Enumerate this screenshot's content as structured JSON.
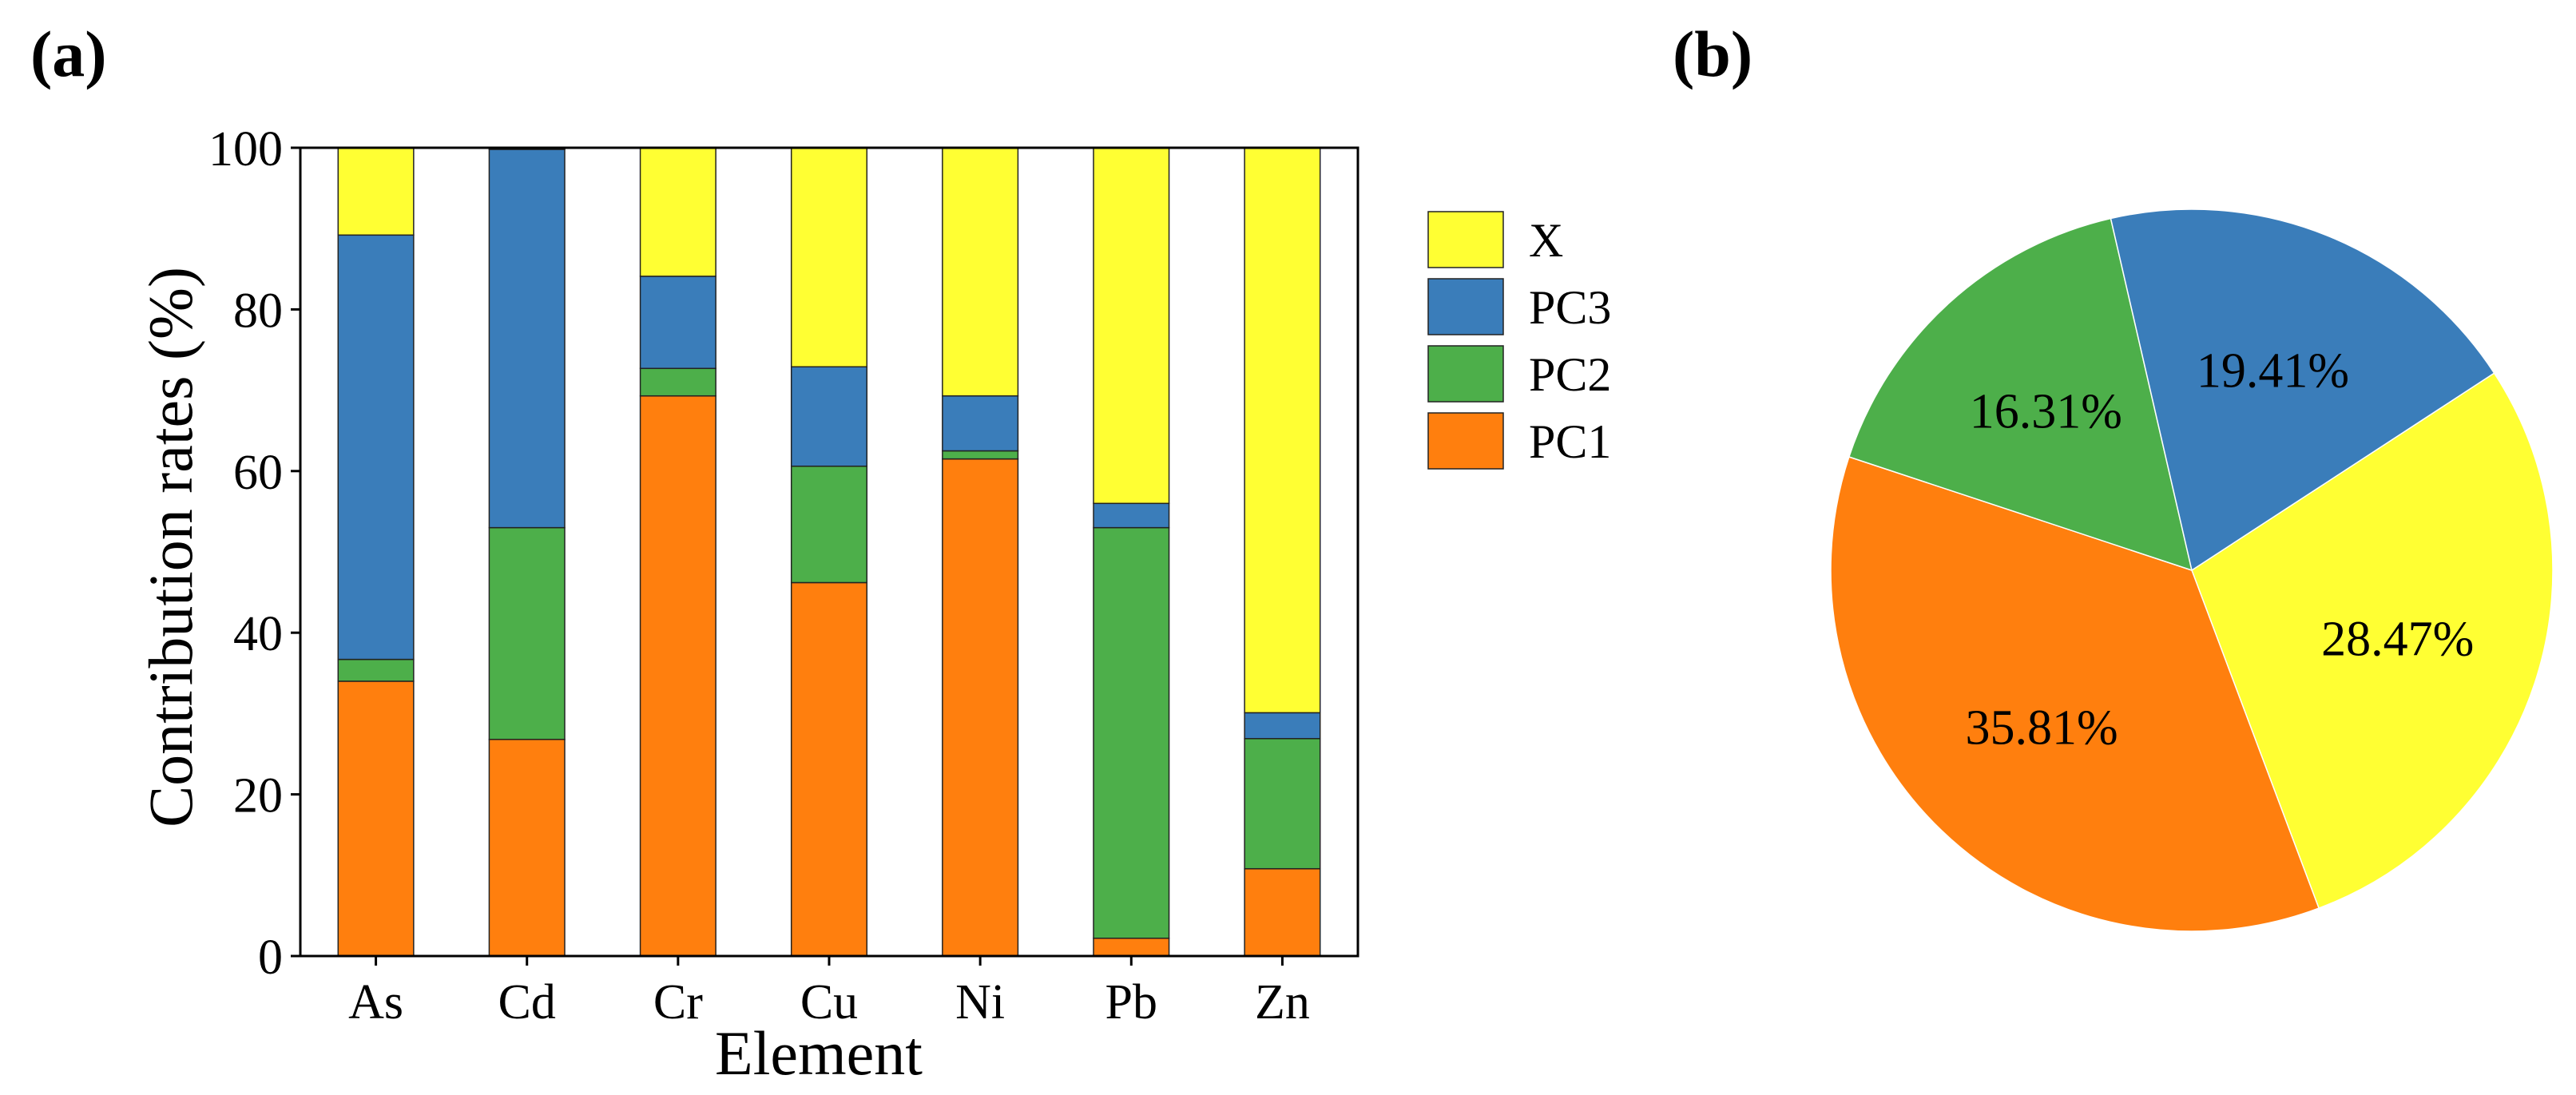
{
  "chart_data": [
    {
      "panel_label": "(a)",
      "type": "bar",
      "stacked": true,
      "xlabel": "Element",
      "ylabel": "Contribution rates (%)",
      "categories": [
        "As",
        "Cd",
        "Cr",
        "Cu",
        "Ni",
        "Pb",
        "Zn"
      ],
      "ylim": [
        0,
        100
      ],
      "yticks": [
        "0",
        "20",
        "40",
        "60",
        "80",
        "100"
      ],
      "ytick_values": [
        0,
        20,
        40,
        60,
        80,
        100
      ],
      "grid": false,
      "legend_position": "right",
      "series": [
        {
          "name": "PC1",
          "color": "#FF7F0E",
          "values": [
            34.0,
            26.8,
            69.3,
            46.2,
            61.5,
            2.2,
            10.8
          ]
        },
        {
          "name": "PC2",
          "color": "#4DAF4A",
          "values": [
            2.7,
            26.2,
            3.4,
            14.4,
            1.0,
            50.8,
            16.1
          ]
        },
        {
          "name": "PC3",
          "color": "#3A7DBA",
          "values": [
            52.5,
            46.8,
            11.4,
            12.3,
            6.8,
            3.0,
            3.2
          ]
        },
        {
          "name": "X",
          "color": "#FFFF33",
          "values": [
            10.8,
            0.2,
            15.9,
            27.1,
            30.7,
            44.0,
            69.9
          ]
        }
      ],
      "legend": [
        {
          "name": "X",
          "color": "#FFFF33"
        },
        {
          "name": "PC3",
          "color": "#3A7DBA"
        },
        {
          "name": "PC2",
          "color": "#4DAF4A"
        },
        {
          "name": "PC1",
          "color": "#FF7F0E"
        }
      ]
    },
    {
      "panel_label": "(b)",
      "type": "pie",
      "slices": [
        {
          "name": "X",
          "value": 28.47,
          "label": "28.47%",
          "color": "#FFFF33"
        },
        {
          "name": "PC1",
          "value": 35.81,
          "label": "35.81%",
          "color": "#FF7F0E"
        },
        {
          "name": "PC2",
          "value": 16.31,
          "label": "16.31%",
          "color": "#4DAF4A"
        },
        {
          "name": "PC3",
          "value": 19.41,
          "label": "19.41%",
          "color": "#3A7DBA"
        }
      ],
      "start_angle_deg": 33.1,
      "direction": "clockwise"
    }
  ]
}
